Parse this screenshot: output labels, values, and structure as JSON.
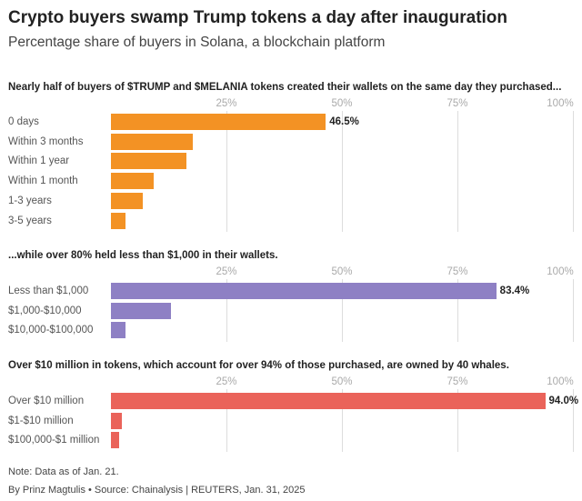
{
  "title": "Crypto buyers swamp Trump tokens a day after inauguration",
  "subtitle": "Percentage share of buyers in Solana, a blockchain platform",
  "chart_data": [
    {
      "type": "bar",
      "orientation": "horizontal",
      "title": "Nearly half of buyers of $TRUMP and $MELANIA tokens created their wallets on the same day they purchased...",
      "categories": [
        "0 days",
        "Within 3 months",
        "Within 1 year",
        "Within 1 month",
        "1-3 years",
        "3-5 years"
      ],
      "values": [
        46.5,
        17.7,
        16.4,
        9.3,
        6.9,
        3.2
      ],
      "labels": [
        "46.5%",
        "",
        "",
        "",
        "",
        ""
      ],
      "color": "#f39224",
      "xlim": [
        0,
        100
      ],
      "ticks": [
        "25%",
        "50%",
        "75%",
        "100%"
      ],
      "grid": true
    },
    {
      "type": "bar",
      "orientation": "horizontal",
      "title": "...while over 80% held less than $1,000 in their wallets.",
      "categories": [
        "Less than $1,000",
        "$1,000-$10,000",
        "$10,000-$100,000"
      ],
      "values": [
        83.4,
        13.0,
        3.1
      ],
      "labels": [
        "83.4%",
        "",
        ""
      ],
      "color": "#8e80c4",
      "xlim": [
        0,
        100
      ],
      "ticks": [
        "25%",
        "50%",
        "75%",
        "100%"
      ],
      "grid": true
    },
    {
      "type": "bar",
      "orientation": "horizontal",
      "title": "Over $10 million in tokens, which account for over 94% of those purchased, are owned by 40 whales.",
      "categories": [
        "Over $10 million",
        "$1-$10 million",
        "$100,000-$1 million"
      ],
      "values": [
        94.0,
        2.3,
        1.8
      ],
      "labels": [
        "94.0%",
        "",
        ""
      ],
      "color": "#ea635a",
      "xlim": [
        0,
        100
      ],
      "ticks": [
        "25%",
        "50%",
        "75%",
        "100%"
      ],
      "grid": true
    }
  ],
  "note": "Note: Data as of Jan. 21.",
  "credit": "By Prinz Magtulis • Source: Chainalysis | REUTERS, Jan. 31, 2025"
}
